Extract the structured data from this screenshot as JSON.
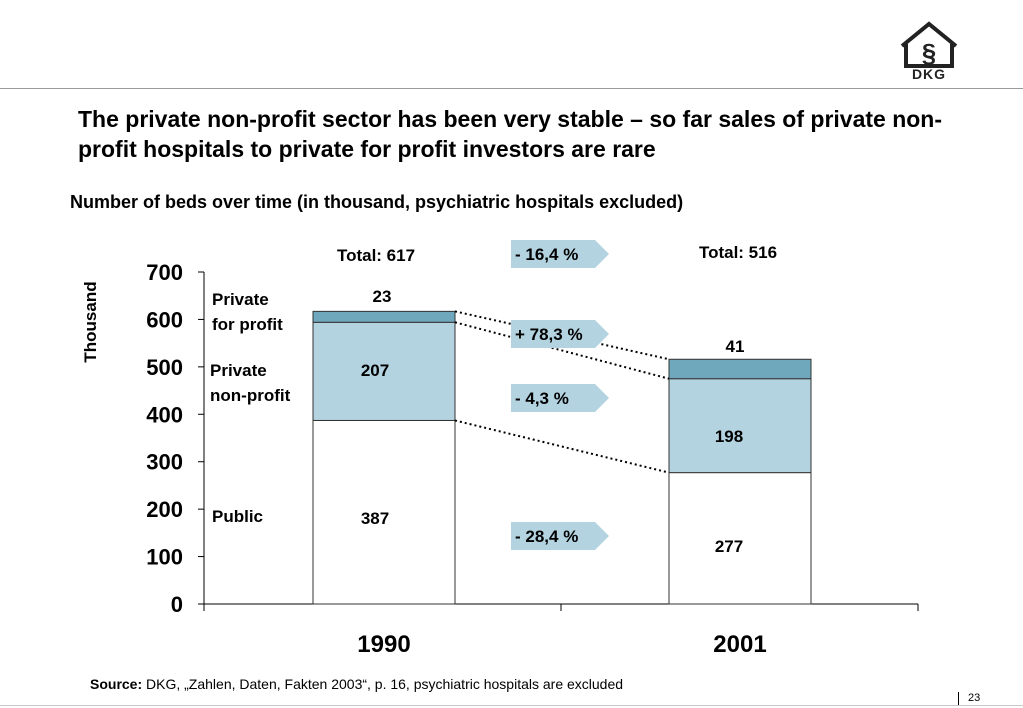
{
  "slide": {
    "headline": "The private non-profit sector has been very stable – so far sales of private non-profit hospitals to private for profit investors are rare",
    "source_label": "Source:",
    "source_text": "DKG, „Zahlen, Daten, Fakten 2003“, p. 16, psychiatric hospitals are excluded",
    "page_number": "23",
    "logo_text": "DKG"
  },
  "chart_data": {
    "type": "bar",
    "stacked": true,
    "title": "Number of beds over time (in thousand, psychiatric hospitals excluded)",
    "ylabel": "Thousand",
    "ylim": [
      0,
      700
    ],
    "yticks": [
      0,
      100,
      200,
      300,
      400,
      500,
      600,
      700
    ],
    "categories": [
      "1990",
      "2001"
    ],
    "series": [
      {
        "name": "Public",
        "values": [
          387,
          277
        ],
        "labels": [
          "387",
          "277"
        ],
        "color": "#ffffff"
      },
      {
        "name": "Private non-profit",
        "values": [
          207,
          198
        ],
        "labels": [
          "207",
          "198"
        ],
        "color": "#b4d3e1"
      },
      {
        "name": "Private for profit",
        "values": [
          23,
          41
        ],
        "labels": [
          "23",
          "41"
        ],
        "color": "#6fa7bc"
      }
    ],
    "series_label_lines": [
      [
        "Public"
      ],
      [
        "Private",
        "non-profit"
      ],
      [
        "Private",
        "for profit"
      ]
    ],
    "totals": [
      "Total: 617",
      "Total: 516"
    ],
    "changes": [
      {
        "label": "- 16,4 %",
        "refers_to": "total"
      },
      {
        "label": "+ 78,3 %",
        "refers_to": "Private for profit"
      },
      {
        "label": "-  4,3 %",
        "refers_to": "Private non-profit"
      },
      {
        "label": "- 28,4 %",
        "refers_to": "Public"
      }
    ],
    "arrow_color": "#b4d3e1"
  }
}
